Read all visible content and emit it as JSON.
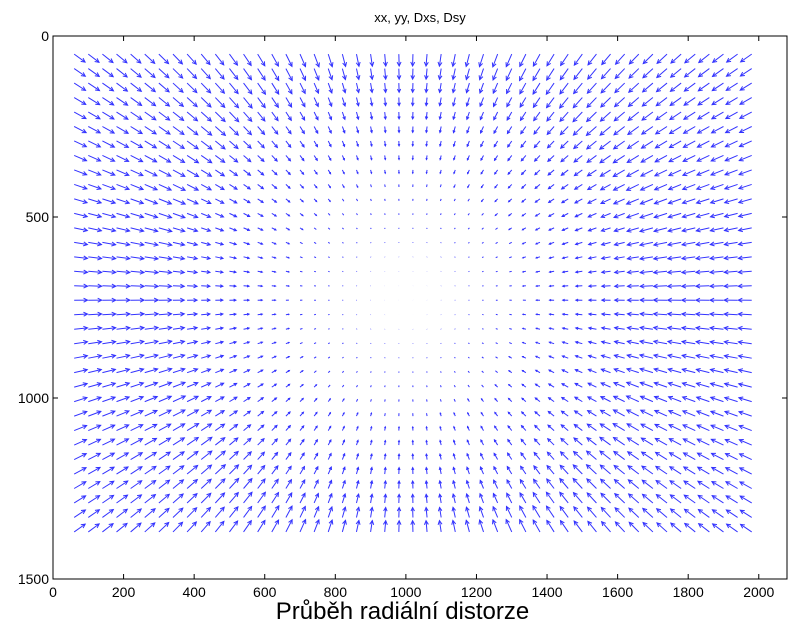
{
  "chart_data": {
    "type": "quiver",
    "title": "xx, yy, Dxs, Dsy",
    "xlabel": "",
    "ylabel": "",
    "xlim": [
      0,
      2080
    ],
    "ylim": [
      1500,
      0
    ],
    "y_reversed": true,
    "x_ticks": [
      0,
      200,
      400,
      600,
      800,
      1000,
      1200,
      1400,
      1600,
      1800,
      2000
    ],
    "y_ticks": [
      0,
      500,
      1000,
      1500
    ],
    "grid": {
      "x_start": 60,
      "x_step": 40,
      "x_count": 49,
      "y_start": 50,
      "y_step": 40,
      "y_count": 34
    },
    "distortion_center": [
      1000,
      720
    ],
    "arrow_color": "#3333ff",
    "grid_on": false
  },
  "caption": "Průběh radiální distorze"
}
